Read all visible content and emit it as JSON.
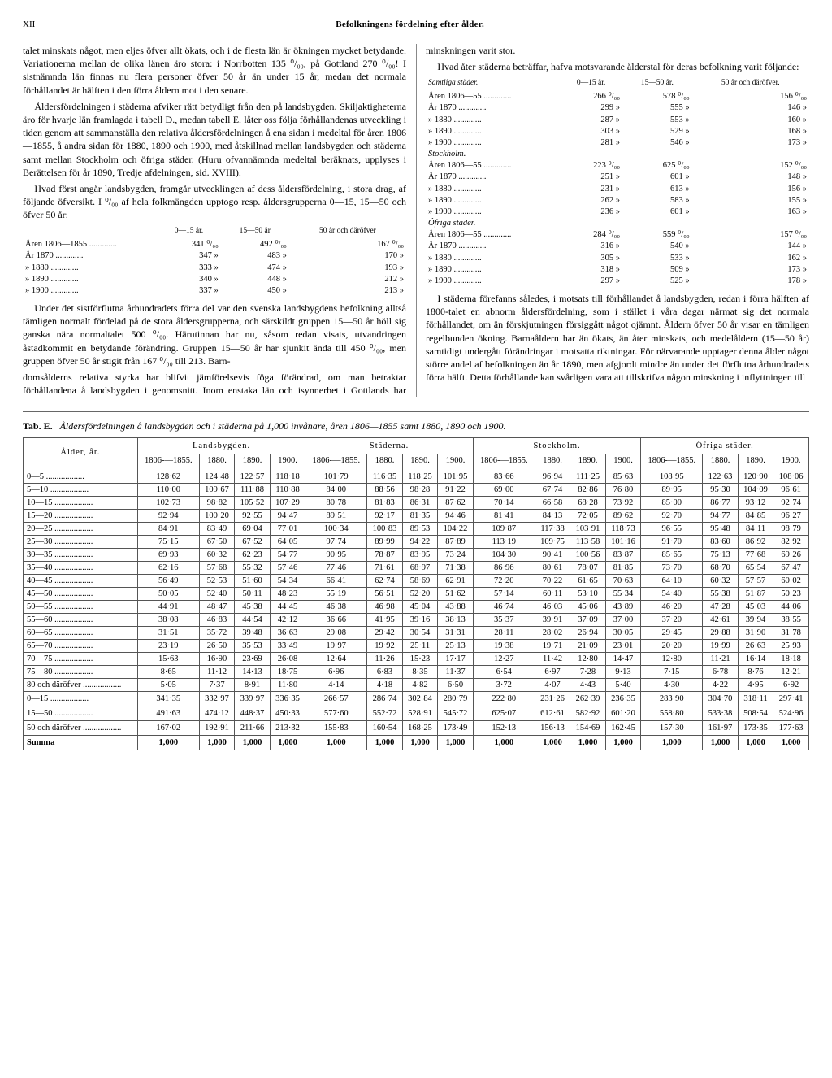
{
  "page_label": "XII",
  "header_title": "Befolkningens fördelning efter ålder.",
  "col_left_p1": "talet minskats något, men eljes öfver allt ökats, och i de flesta län är ökningen mycket betydande. Variationerna mellan de olika länen äro stora: i Norrbotten 135 ⁰/₀₀, på Gottland 270 ⁰/₀₀! I sistnämnda län finnas nu flera personer öfver 50 år än under 15 år, medan det normala förhållandet är hälften i den förra åldern mot i den senare.",
  "col_left_p2": "Åldersfördelningen i städerna afviker rätt betydligt från den på landsbygden. Skiljaktigheterna äro för hvarje län framlagda i tabell D., medan tabell E. låter oss följa förhållandenas utveckling i tiden genom att sammanställa den relativa åldersfördelningen å ena sidan i medeltal för åren 1806—1855, å andra sidan för 1880, 1890 och 1900, med åtskillnad mellan landsbygden och städerna samt mellan Stockholm och öfriga städer. (Huru ofvannämnda medeltal beräknats, upplyses i Berättelsen för år 1890, Tredje afdelningen, sid. XVIII).",
  "col_left_p3": "Hvad först angår landsbygden, framgår utvecklingen af dess åldersfördelning, i stora drag, af följande öfversikt. I ⁰/₀₀ af hela folkmängden upptogo resp. åldersgrupperna 0—15, 15—50 och öfver 50 år:",
  "mini1": {
    "headers": [
      "",
      "0—15 år.",
      "15—50 år",
      "50 år och däröfver"
    ],
    "rows": [
      [
        "Åren 1806—1855",
        "341 ⁰/₀₀",
        "492 ⁰/₀₀",
        "167 ⁰/₀₀"
      ],
      [
        "År 1870",
        "347  »",
        "483  »",
        "170  »"
      ],
      [
        "»  1880",
        "333  »",
        "474  »",
        "193  »"
      ],
      [
        "»  1890",
        "340  »",
        "448  »",
        "212  »"
      ],
      [
        "»  1900",
        "337  »",
        "450  »",
        "213  »"
      ]
    ]
  },
  "col_left_p4": "Under det sistförflutna århundradets förra del var den svenska landsbygdens befolkning alltså tämligen normalt fördelad på de stora åldersgrupperna, och särskildt gruppen 15—50 år höll sig ganska nära normaltalet 500 ⁰/₀₀. Härutinnan har nu, såsom redan visats, utvandringen åstadkommit en betydande förändring. Gruppen 15—50 år har sjunkit ända till 450 ⁰/₀₀, men gruppen öfver 50 år stigit från 167 ⁰/₀₀ till 213. Barn-",
  "col_right_p1": "domsålderns relativa styrka har blifvit jämförelsevis föga förändrad, om man betraktar förhållandena å landsbygden i genomsnitt. Inom enstaka län och isynnerhet i Gottlands har minskningen varit stor.",
  "col_right_p2": "Hvad åter städerna beträffar, hafva motsvarande ålderstal för deras befolkning varit följande:",
  "mini2": {
    "header_row": [
      "Samtliga städer.",
      "0—15 år.",
      "15—50 år.",
      "50 år och däröfver."
    ],
    "sections": [
      {
        "name": "",
        "rows": [
          [
            "Åren 1806—55",
            "266 ⁰/₀₀",
            "578 ⁰/₀₀",
            "156 ⁰/₀₀"
          ],
          [
            "År 1870",
            "299  »",
            "555  »",
            "146  »"
          ],
          [
            "»  1880",
            "287  »",
            "553  »",
            "160  »"
          ],
          [
            "»  1890",
            "303  »",
            "529  »",
            "168  »"
          ],
          [
            "»  1900",
            "281  »",
            "546  »",
            "173  »"
          ]
        ]
      },
      {
        "name": "Stockholm.",
        "rows": [
          [
            "Åren 1806—55",
            "223 ⁰/₀₀",
            "625 ⁰/₀₀",
            "152 ⁰/₀₀"
          ],
          [
            "År 1870",
            "251  »",
            "601  »",
            "148  »"
          ],
          [
            "»  1880",
            "231  »",
            "613  »",
            "156  »"
          ],
          [
            "»  1890",
            "262  »",
            "583  »",
            "155  »"
          ],
          [
            "»  1900",
            "236  »",
            "601  »",
            "163  »"
          ]
        ]
      },
      {
        "name": "Öfriga städer.",
        "rows": [
          [
            "Åren 1806—55",
            "284 ⁰/₀₀",
            "559 ⁰/₀₀",
            "157 ⁰/₀₀"
          ],
          [
            "År 1870",
            "316  »",
            "540  »",
            "144  »"
          ],
          [
            "»  1880",
            "305  »",
            "533  »",
            "162  »"
          ],
          [
            "»  1890",
            "318  »",
            "509  »",
            "173  »"
          ],
          [
            "»  1900",
            "297  »",
            "525  »",
            "178  »"
          ]
        ]
      }
    ]
  },
  "col_right_p3": "I städerna förefanns således, i motsats till förhållandet å landsbygden, redan i förra hälften af 1800-talet en abnorm åldersfördelning, som i stället i våra dagar närmat sig det normala förhållandet, om än förskjutningen försiggått något ojämnt. Åldern öfver 50 år visar en tämligen regelbunden ökning. Barnaåldern har än ökats, än åter minskats, och medelåldern (15—50 år) samtidigt undergått förändringar i motsatta riktningar. För närvarande upptager denna ålder något större andel af befolkningen än år 1890, men afgjordt mindre än under det förflutna århundradets förra hälft. Detta förhållande kan svårligen vara att tillskrifva någon minskning i inflyttningen till",
  "tab_label": "Tab. E.",
  "tab_caption": "Åldersfördelningen å landsbygden och i städerna på 1,000 invånare, åren 1806—1855 samt 1880, 1890 och 1900.",
  "big_table": {
    "group_headers": [
      "Landsbygden.",
      "Städerna.",
      "Stockholm.",
      "Öfriga städer."
    ],
    "sub_headers": [
      "1806-—1855.",
      "1880.",
      "1890.",
      "1900."
    ],
    "row_label_header": "Ålder, år.",
    "rows": [
      [
        "0—5",
        "128·62",
        "124·48",
        "122·57",
        "118·18",
        "101·79",
        "116·35",
        "118·25",
        "101·95",
        "83·66",
        "96·94",
        "111·25",
        "85·63",
        "108·95",
        "122·63",
        "120·90",
        "108·06"
      ],
      [
        "5—10",
        "110·00",
        "109·67",
        "111·88",
        "110·88",
        "84·00",
        "88·56",
        "98·28",
        "91·22",
        "69·00",
        "67·74",
        "82·86",
        "76·80",
        "89·95",
        "95·30",
        "104·09",
        "96·61"
      ],
      [
        "10—15",
        "102·73",
        "98·82",
        "105·52",
        "107·29",
        "80·78",
        "81·83",
        "86·31",
        "87·62",
        "70·14",
        "66·58",
        "68·28",
        "73·92",
        "85·00",
        "86·77",
        "93·12",
        "92·74"
      ],
      [
        "15—20",
        "92·94",
        "100·20",
        "92·55",
        "94·47",
        "89·51",
        "92·17",
        "81·35",
        "94·46",
        "81·41",
        "84·13",
        "72·05",
        "89·62",
        "92·70",
        "94·77",
        "84·85",
        "96·27"
      ],
      [
        "20—25",
        "84·91",
        "83·49",
        "69·04",
        "77·01",
        "100·34",
        "100·83",
        "89·53",
        "104·22",
        "109·87",
        "117·38",
        "103·91",
        "118·73",
        "96·55",
        "95·48",
        "84·11",
        "98·79"
      ],
      [
        "25—30",
        "75·15",
        "67·50",
        "67·52",
        "64·05",
        "97·74",
        "89·99",
        "94·22",
        "87·89",
        "113·19",
        "109·75",
        "113·58",
        "101·16",
        "91·70",
        "83·60",
        "86·92",
        "82·92"
      ],
      [
        "30—35",
        "69·93",
        "60·32",
        "62·23",
        "54·77",
        "90·95",
        "78·87",
        "83·95",
        "73·24",
        "104·30",
        "90·41",
        "100·56",
        "83·87",
        "85·65",
        "75·13",
        "77·68",
        "69·26"
      ],
      [
        "35—40",
        "62·16",
        "57·68",
        "55·32",
        "57·46",
        "77·46",
        "71·61",
        "68·97",
        "71·38",
        "86·96",
        "80·61",
        "78·07",
        "81·85",
        "73·70",
        "68·70",
        "65·54",
        "67·47"
      ],
      [
        "40—45",
        "56·49",
        "52·53",
        "51·60",
        "54·34",
        "66·41",
        "62·74",
        "58·69",
        "62·91",
        "72·20",
        "70·22",
        "61·65",
        "70·63",
        "64·10",
        "60·32",
        "57·57",
        "60·02"
      ],
      [
        "45—50",
        "50·05",
        "52·40",
        "50·11",
        "48·23",
        "55·19",
        "56·51",
        "52·20",
        "51·62",
        "57·14",
        "60·11",
        "53·10",
        "55·34",
        "54·40",
        "55·38",
        "51·87",
        "50·23"
      ],
      [
        "50—55",
        "44·91",
        "48·47",
        "45·38",
        "44·45",
        "46·38",
        "46·98",
        "45·04",
        "43·88",
        "46·74",
        "46·03",
        "45·06",
        "43·89",
        "46·20",
        "47·28",
        "45·03",
        "44·06"
      ],
      [
        "55—60",
        "38·08",
        "46·83",
        "44·54",
        "42·12",
        "36·66",
        "41·95",
        "39·16",
        "38·13",
        "35·37",
        "39·91",
        "37·09",
        "37·00",
        "37·20",
        "42·61",
        "39·94",
        "38·55"
      ],
      [
        "60—65",
        "31·51",
        "35·72",
        "39·48",
        "36·63",
        "29·08",
        "29·42",
        "30·54",
        "31·31",
        "28·11",
        "28·02",
        "26·94",
        "30·05",
        "29·45",
        "29·88",
        "31·90",
        "31·78"
      ],
      [
        "65—70",
        "23·19",
        "26·50",
        "35·53",
        "33·49",
        "19·97",
        "19·92",
        "25·11",
        "25·13",
        "19·38",
        "19·71",
        "21·09",
        "23·01",
        "20·20",
        "19·99",
        "26·63",
        "25·93"
      ],
      [
        "70—75",
        "15·63",
        "16·90",
        "23·69",
        "26·08",
        "12·64",
        "11·26",
        "15·23",
        "17·17",
        "12·27",
        "11·42",
        "12·80",
        "14·47",
        "12·80",
        "11·21",
        "16·14",
        "18·18"
      ],
      [
        "75—80",
        "8·65",
        "11·12",
        "14·13",
        "18·75",
        "6·96",
        "6·83",
        "8·35",
        "11·37",
        "6·54",
        "6·97",
        "7·28",
        "9·13",
        "7·15",
        "6·78",
        "8·76",
        "12·21"
      ],
      [
        "80 och däröfver",
        "5·05",
        "7·37",
        "8·91",
        "11·80",
        "4·14",
        "4·18",
        "4·82",
        "6·50",
        "3·72",
        "4·07",
        "4·43",
        "5·40",
        "4·30",
        "4·22",
        "4·95",
        "6·92"
      ]
    ],
    "summary": [
      [
        "0—15",
        "341·35",
        "332·97",
        "339·97",
        "336·35",
        "266·57",
        "286·74",
        "302·84",
        "280·79",
        "222·80",
        "231·26",
        "262·39",
        "236·35",
        "283·90",
        "304·70",
        "318·11",
        "297·41"
      ],
      [
        "15—50",
        "491·63",
        "474·12",
        "448·37",
        "450·33",
        "577·60",
        "552·72",
        "528·91",
        "545·72",
        "625·07",
        "612·61",
        "582·92",
        "601·20",
        "558·80",
        "533·38",
        "508·54",
        "524·96"
      ],
      [
        "50 och däröfver",
        "167·02",
        "192·91",
        "211·66",
        "213·32",
        "155·83",
        "160·54",
        "168·25",
        "173·49",
        "152·13",
        "156·13",
        "154·69",
        "162·45",
        "157·30",
        "161·97",
        "173·35",
        "177·63"
      ]
    ],
    "summa_label": "Summa",
    "summa_value": "1,000"
  }
}
